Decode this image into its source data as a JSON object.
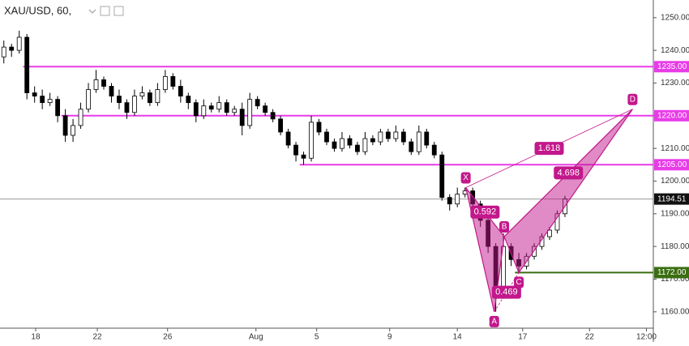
{
  "chart_data": {
    "type": "candlestick",
    "title": "XAU/USD, 60,",
    "xlim": [
      0,
      85
    ],
    "xticks": [
      {
        "value": 4.64,
        "label": "18"
      },
      {
        "value": 12.66,
        "label": "22"
      },
      {
        "value": 21.8,
        "label": "26"
      },
      {
        "value": 33.3,
        "label": "Aug"
      },
      {
        "value": 41.2,
        "label": "5"
      },
      {
        "value": 50.7,
        "label": "9"
      },
      {
        "value": 59.5,
        "label": "14"
      },
      {
        "value": 68.0,
        "label": "17"
      },
      {
        "value": 76.7,
        "label": "22"
      },
      {
        "value": 84.1,
        "label": "12:00"
      }
    ],
    "ylim": [
      1155,
      1255.4
    ],
    "yticks": [
      {
        "value": 1160,
        "label": "1160.00"
      },
      {
        "value": 1170,
        "label": "1170.00"
      },
      {
        "value": 1180,
        "label": "1180.00"
      },
      {
        "value": 1190,
        "label": "1190.00"
      },
      {
        "value": 1200,
        "label": "1200.00"
      },
      {
        "value": 1210,
        "label": "1210.00"
      },
      {
        "value": 1220,
        "label": "1220.00"
      },
      {
        "value": 1230,
        "label": "1230.00"
      },
      {
        "value": 1240,
        "label": "1240.00"
      },
      {
        "value": 1250,
        "label": "1250.00"
      }
    ],
    "up_color": "#ffffff",
    "down_color": "#000000",
    "open": [
      1238,
      1241,
      1240,
      1244,
      1227,
      1226,
      1224,
      1225,
      1220,
      1214,
      1217,
      1222,
      1228,
      1231,
      1229,
      1226,
      1224,
      1221,
      1226,
      1227,
      1224,
      1228,
      1232,
      1229,
      1226,
      1224,
      1220,
      1223,
      1222,
      1224,
      1221,
      1222,
      1217,
      1225,
      1223,
      1221,
      1219,
      1215,
      1211,
      1208,
      1207,
      1218,
      1215,
      1212,
      1210,
      1213,
      1211,
      1209,
      1213,
      1212,
      1215,
      1213,
      1215,
      1212,
      1209,
      1215,
      1211,
      1208,
      1195,
      1193,
      1196,
      1197,
      1193,
      1188,
      1180,
      1165,
      1180,
      1176,
      1174,
      1177,
      1180,
      1183,
      1185,
      1190
    ],
    "high": [
      1243,
      1242,
      1246,
      1245,
      1229,
      1228,
      1227,
      1226,
      1222,
      1219,
      1224,
      1230,
      1234,
      1232,
      1230,
      1228,
      1225,
      1228,
      1229,
      1228,
      1230,
      1234,
      1233,
      1231,
      1227,
      1225,
      1225,
      1224,
      1226,
      1225,
      1223,
      1224,
      1227,
      1226,
      1224,
      1222,
      1220,
      1216,
      1212,
      1209,
      1220,
      1219,
      1216,
      1213,
      1215,
      1214,
      1212,
      1215,
      1214,
      1216,
      1216,
      1217,
      1216,
      1213,
      1217,
      1216,
      1212,
      1209,
      1196,
      1198,
      1198,
      1198,
      1194,
      1189,
      1181,
      1184,
      1181,
      1178,
      1178,
      1181,
      1184,
      1186,
      1191,
      1195.5
    ],
    "low": [
      1236,
      1238,
      1239,
      1225,
      1224,
      1222,
      1223,
      1218,
      1212,
      1212,
      1216,
      1221,
      1227,
      1228,
      1224,
      1222,
      1219,
      1220,
      1225,
      1223,
      1223,
      1227,
      1228,
      1224,
      1222,
      1218,
      1219,
      1221,
      1221,
      1220,
      1220,
      1214,
      1216,
      1222,
      1220,
      1218,
      1214,
      1210,
      1206,
      1205,
      1206,
      1214,
      1211,
      1209,
      1209,
      1210,
      1208,
      1208,
      1211,
      1211,
      1212,
      1212,
      1211,
      1208,
      1208,
      1210,
      1207,
      1194,
      1191,
      1192,
      1195,
      1192,
      1186,
      1178,
      1160,
      1164,
      1174,
      1172,
      1173,
      1176,
      1179,
      1182,
      1184,
      1189
    ],
    "close": [
      1241,
      1240,
      1244,
      1227,
      1226,
      1224,
      1225,
      1220,
      1214,
      1217,
      1222,
      1228,
      1231,
      1229,
      1226,
      1224,
      1221,
      1226,
      1227,
      1224,
      1228,
      1232,
      1229,
      1226,
      1224,
      1220,
      1223,
      1222,
      1224,
      1221,
      1222,
      1217,
      1225,
      1223,
      1221,
      1219,
      1215,
      1211,
      1208,
      1207,
      1218,
      1215,
      1212,
      1210,
      1213,
      1211,
      1209,
      1213,
      1212,
      1215,
      1213,
      1215,
      1212,
      1209,
      1215,
      1211,
      1208,
      1195,
      1193,
      1196,
      1197,
      1193,
      1188,
      1180,
      1165,
      1180,
      1176,
      1174,
      1177,
      1180,
      1183,
      1185,
      1190,
      1194.51
    ],
    "levels": [
      {
        "value": 1235,
        "label": "1235.00",
        "start": 3,
        "color": "#e83ce8"
      },
      {
        "value": 1220,
        "label": "1220.00",
        "start": 8,
        "color": "#e83ce8"
      },
      {
        "value": 1205,
        "label": "1205.00",
        "start": 39,
        "color": "#e83ce8"
      },
      {
        "value": 1172,
        "label": "1172.00",
        "start": 67,
        "color": "#3a6e12"
      }
    ],
    "last_price": 1194.51,
    "pattern": {
      "color": "#c2188b",
      "points": [
        {
          "label": "X",
          "x": 60.6,
          "y": 1198
        },
        {
          "label": "A",
          "x": 64.3,
          "y": 1160
        },
        {
          "label": "B",
          "x": 65.6,
          "y": 1183
        },
        {
          "label": "C",
          "x": 67.5,
          "y": 1172
        },
        {
          "label": "D",
          "x": 82.3,
          "y": 1222
        }
      ],
      "ratios": [
        0.592,
        0.469,
        1.618,
        4.698
      ]
    }
  }
}
